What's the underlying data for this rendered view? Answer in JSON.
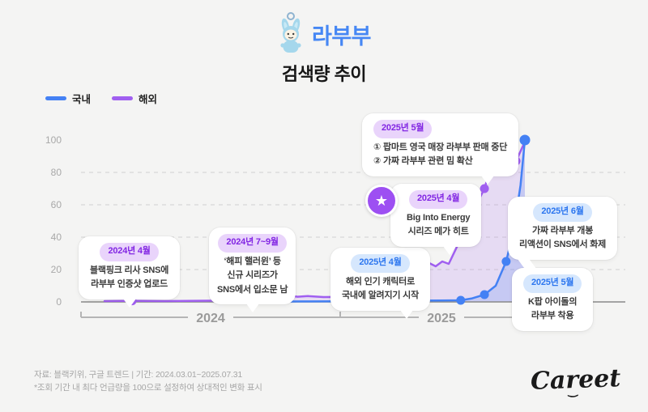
{
  "header": {
    "title": "라부부",
    "subtitle": "검색량 추이",
    "icon": "labubu-doll-icon"
  },
  "legend": [
    {
      "label": "국내",
      "color": "#4481f4"
    },
    {
      "label": "해외",
      "color": "#a05ff0"
    }
  ],
  "chart_data": {
    "type": "line",
    "title": "라부부 검색량 추이",
    "x_unit": "months since 2024-03 (period 2024.03.01 ~ 2025.07.31)",
    "x_range": [
      0,
      17
    ],
    "ylim": [
      0,
      100
    ],
    "grid": "dashed horizontal at 20/40/60/80",
    "legend_position": "top-left",
    "y_ticks": [
      "100",
      "80",
      "60",
      "40",
      "20",
      "0"
    ],
    "x_axis_labels": [
      "2024",
      "2025"
    ],
    "series": [
      {
        "name": "해외",
        "color": "#a05ff0",
        "fill": "rgba(160,95,240,0.16)",
        "points": [
          [
            0.9,
            0.5
          ],
          [
            1.96,
            0.7
          ],
          [
            3.2,
            0.5
          ],
          [
            4.4,
            0.7
          ],
          [
            5.4,
            0.8
          ],
          [
            6.49,
            1.5
          ],
          [
            7.1,
            1.8
          ],
          [
            7.5,
            3.6
          ],
          [
            7.9,
            4.2
          ],
          [
            8.3,
            3.2
          ],
          [
            8.7,
            3.6
          ],
          [
            9.3,
            3.0
          ],
          [
            10.2,
            3.1
          ],
          [
            11.0,
            3.4
          ],
          [
            11.8,
            4.6
          ],
          [
            12.3,
            7.0
          ],
          [
            12.8,
            13.0
          ],
          [
            13.1,
            21.5
          ],
          [
            13.35,
            24.0
          ],
          [
            13.6,
            22.0
          ],
          [
            13.85,
            25.0
          ],
          [
            14.1,
            23.5
          ],
          [
            14.53,
            38.0
          ],
          [
            15.0,
            55.0
          ],
          [
            15.47,
            70.0
          ],
          [
            15.8,
            88.0
          ],
          [
            16.1,
            100.0
          ],
          [
            16.68,
            87.0
          ],
          [
            17.02,
            99.0
          ]
        ],
        "dots": [
          [
            1.96,
            0.7
          ],
          [
            6.49,
            1.5
          ],
          [
            14.53,
            38.0
          ],
          [
            15.47,
            70.0
          ],
          [
            16.68,
            87.0
          ]
        ]
      },
      {
        "name": "국내",
        "color": "#4481f4",
        "fill": "rgba(68,129,244,0.20)",
        "points": [
          [
            7.0,
            0.2
          ],
          [
            8.5,
            0.3
          ],
          [
            10.0,
            0.4
          ],
          [
            11.5,
            0.6
          ],
          [
            12.8,
            0.8
          ],
          [
            13.8,
            0.9
          ],
          [
            14.56,
            1.0
          ],
          [
            15.0,
            2.2
          ],
          [
            15.47,
            4.5
          ],
          [
            15.9,
            10.0
          ],
          [
            16.3,
            25.0
          ],
          [
            16.6,
            45.0
          ],
          [
            16.85,
            72.0
          ],
          [
            17.02,
            100.0
          ]
        ],
        "dots": [
          [
            14.56,
            1.0
          ],
          [
            15.47,
            4.5
          ],
          [
            16.3,
            25.0
          ],
          [
            17.02,
            100.0
          ]
        ]
      }
    ]
  },
  "callouts": [
    {
      "badge": "2024년 4월",
      "lines": [
        "블랙핑크 리사 SNS에",
        "라부부 인증샷 업로드"
      ]
    },
    {
      "badge": "2024년 7~9월",
      "lines": [
        "‘해피 핼러윈’ 등",
        "신규 시리즈가",
        "SNS에서 입소문 남"
      ]
    },
    {
      "badge": "2025년 4월",
      "lines": [
        "해외 인기 캐릭터로",
        "국내에 알려지기 시작"
      ]
    },
    {
      "badge": "2025년 4월",
      "lines": [
        "Big Into Energy",
        "시리즈 메가 히트"
      ],
      "icon": "star-icon"
    },
    {
      "badge": "2025년 5월",
      "lines": [
        "① 팝마트 영국 매장 라부부 판매 중단",
        "② 가짜 라부부 관련 밈 확산"
      ]
    },
    {
      "badge": "2025년 6월",
      "lines": [
        "가짜 라부부 개봉",
        "리액션이 SNS에서 화제"
      ]
    },
    {
      "badge": "2025년 5월",
      "lines": [
        "K팝 아이돌의",
        "라부부 착용"
      ]
    }
  ],
  "star_glyph": "★",
  "footer": {
    "source": "자료: 블랙키위, 구글 트렌드 | 기간: 2024.03.01~2025.07.31",
    "note": "*조회 기간 내 최다 언급량을 100으로 설정하여 상대적인 변화 표시"
  },
  "logo": {
    "text": "Careet",
    "mark": "‿"
  }
}
